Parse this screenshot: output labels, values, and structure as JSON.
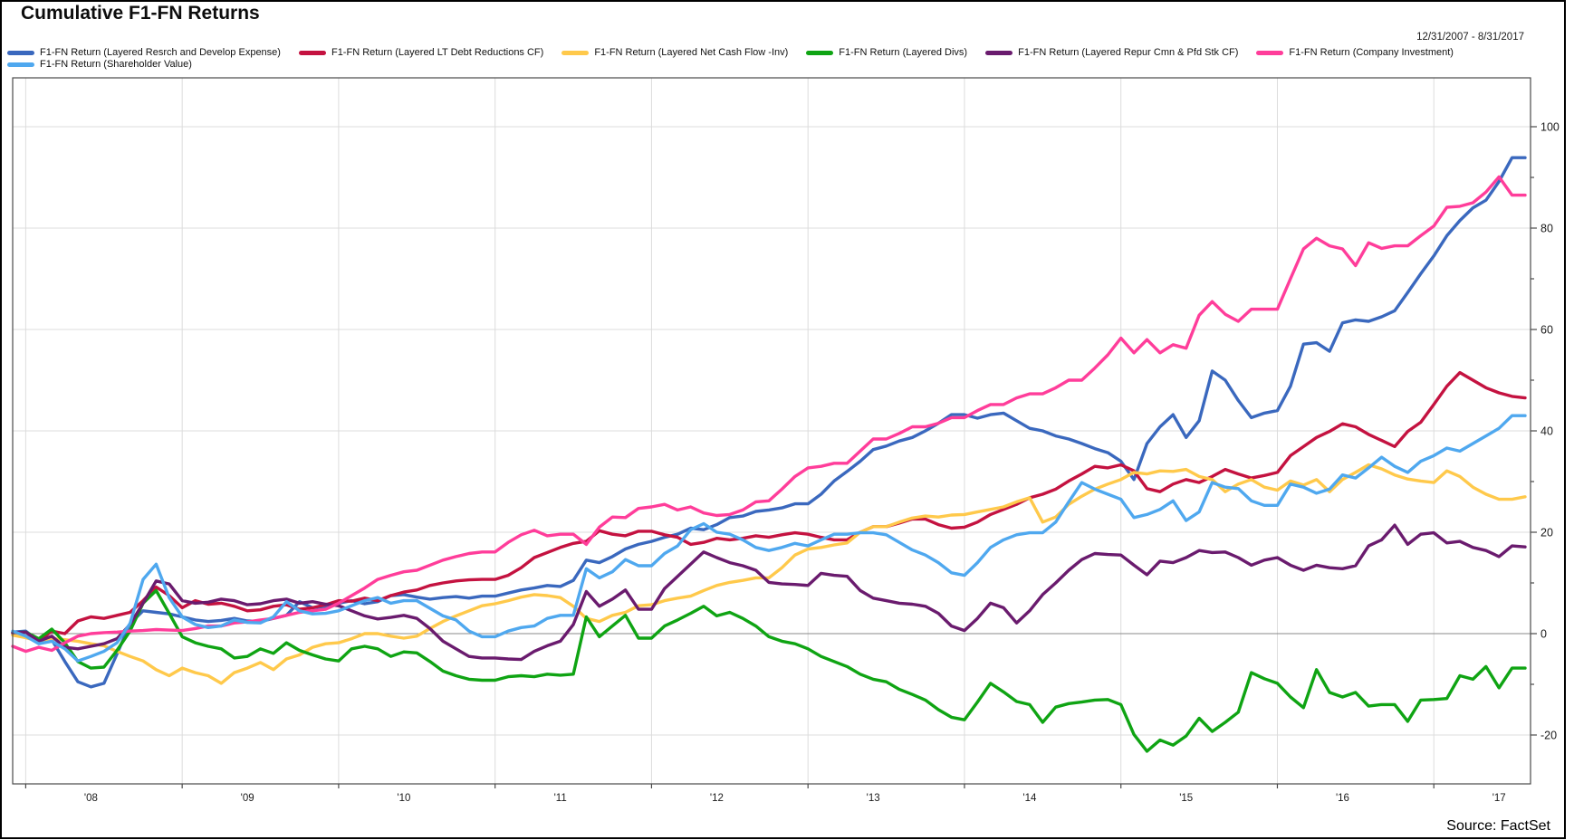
{
  "chart_data": {
    "type": "line",
    "title": "Cumulative F1-FN Returns",
    "period_label": "12/31/2007 - 8/31/2017",
    "source_label": "Source: FactSet",
    "legend_position": "top-left, two rows",
    "grid": {
      "horizontal_step": 20,
      "vertical": "year-start",
      "zero_line": true
    },
    "x_axis": {
      "start_month": "2007-12",
      "end_month": "2017-08",
      "points": 117,
      "step_months": 1,
      "labels": [
        "'08",
        "'09",
        "'10",
        "'11",
        "'12",
        "'13",
        "'14",
        "'15",
        "'16",
        "'17"
      ]
    },
    "y_axis": {
      "min": -29.6,
      "max": 109.6,
      "major_tick_step": 20,
      "minor_tick_step": 10,
      "tick_values": [
        -20,
        0,
        20,
        40,
        60,
        80,
        100
      ]
    },
    "series": [
      {
        "name": "F1-FN Return (Layered Resrch and Develop Expense)",
        "color": "#3A68BE",
        "values": [
          0.3,
          0.5,
          -1.5,
          -1.2,
          -5.5,
          -9.5,
          -10.5,
          -9.8,
          -4.0,
          2.0,
          4.5,
          4.2,
          3.9,
          3.3,
          2.7,
          2.4,
          2.6,
          3.0,
          2.5,
          2.4,
          3.0,
          3.6,
          6.3,
          5.1,
          5.4,
          6.0,
          6.5,
          5.9,
          6.3,
          7.5,
          7.7,
          7.2,
          6.8,
          7.1,
          7.3,
          7.0,
          7.4,
          7.4,
          8.0,
          8.6,
          9.0,
          9.5,
          9.3,
          10.5,
          14.5,
          14.0,
          15.2,
          16.7,
          17.6,
          18.2,
          19.0,
          19.6,
          20.8,
          20.5,
          21.5,
          22.9,
          23.2,
          24.1,
          24.4,
          24.8,
          25.6,
          25.6,
          27.5,
          30.1,
          32.0,
          34.0,
          36.3,
          37.0,
          38.0,
          38.7,
          40.0,
          41.5,
          43.2,
          43.2,
          42.5,
          43.2,
          43.5,
          42.0,
          40.5,
          40.0,
          39.0,
          38.4,
          37.5,
          36.5,
          35.7,
          34.0,
          30.4,
          37.5,
          40.8,
          43.2,
          38.7,
          42.0,
          51.8,
          50.0,
          46.0,
          42.6,
          43.5,
          44.0,
          48.8,
          57.1,
          57.4,
          55.7,
          61.3,
          61.9,
          61.6,
          62.5,
          63.7,
          67.3,
          71.0,
          74.5,
          78.5,
          81.5,
          84.0,
          85.5,
          89.2,
          93.9,
          93.9
        ]
      },
      {
        "name": "F1-FN Return (Layered LT Debt Reductions CF)",
        "color": "#C41240",
        "values": [
          0.0,
          -0.5,
          -1.5,
          0.5,
          0.0,
          2.5,
          3.3,
          3.0,
          3.6,
          4.2,
          6.5,
          9.2,
          7.5,
          5.1,
          6.5,
          5.8,
          6.0,
          5.4,
          4.5,
          4.7,
          5.4,
          5.7,
          4.8,
          5.1,
          5.7,
          6.5,
          6.4,
          7.0,
          6.5,
          7.5,
          8.2,
          8.6,
          9.5,
          10.0,
          10.4,
          10.6,
          10.7,
          10.7,
          11.5,
          13.0,
          15.0,
          16.0,
          17.0,
          17.8,
          18.2,
          20.3,
          19.6,
          19.3,
          20.2,
          20.2,
          19.5,
          19.0,
          17.6,
          18.0,
          18.8,
          18.5,
          18.8,
          19.3,
          19.0,
          19.5,
          19.9,
          19.6,
          19.0,
          18.5,
          18.5,
          20.0,
          21.1,
          21.1,
          21.8,
          22.6,
          22.6,
          21.5,
          20.8,
          21.0,
          22.0,
          23.5,
          24.5,
          25.5,
          26.8,
          27.5,
          28.5,
          30.1,
          31.5,
          33.0,
          32.7,
          33.3,
          32.1,
          28.6,
          28.0,
          29.5,
          30.4,
          29.8,
          31.0,
          32.4,
          31.5,
          30.7,
          31.2,
          31.8,
          35.1,
          36.9,
          38.7,
          39.9,
          41.4,
          40.8,
          39.3,
          38.1,
          36.9,
          39.9,
          41.7,
          45.2,
          48.8,
          51.5,
          50.0,
          48.5,
          47.5,
          46.8,
          46.5
        ]
      },
      {
        "name": "F1-FN Return (Layered Net Cash Flow -Inv)",
        "color": "#FFC94B",
        "values": [
          -0.3,
          -0.8,
          -1.5,
          -1.0,
          -1.2,
          -1.5,
          -2.0,
          -2.4,
          -3.5,
          -4.5,
          -5.4,
          -7.1,
          -8.3,
          -6.8,
          -7.7,
          -8.3,
          -9.8,
          -7.7,
          -6.8,
          -5.7,
          -7.1,
          -5.0,
          -4.2,
          -2.7,
          -2.0,
          -1.8,
          -1.0,
          0.0,
          0.0,
          -0.5,
          -0.9,
          -0.5,
          1.0,
          2.4,
          3.5,
          4.5,
          5.5,
          5.9,
          6.5,
          7.2,
          7.7,
          7.5,
          7.1,
          5.4,
          3.0,
          2.4,
          3.6,
          4.2,
          5.5,
          5.7,
          6.5,
          7.0,
          7.4,
          8.5,
          9.5,
          10.1,
          10.5,
          11.0,
          11.0,
          13.0,
          15.5,
          16.7,
          17.0,
          17.5,
          17.9,
          20.0,
          21.1,
          21.1,
          22.0,
          22.8,
          23.2,
          23.0,
          23.4,
          23.5,
          24.0,
          24.5,
          25.0,
          26.0,
          26.8,
          22.0,
          23.0,
          25.5,
          27.1,
          28.5,
          29.5,
          30.4,
          31.8,
          31.5,
          32.1,
          32.0,
          32.4,
          31.0,
          30.4,
          28.0,
          29.5,
          30.4,
          28.9,
          28.3,
          30.1,
          29.3,
          30.4,
          28.0,
          30.4,
          31.8,
          33.3,
          32.5,
          31.3,
          30.5,
          30.1,
          29.8,
          32.1,
          31.0,
          28.9,
          27.5,
          26.5,
          26.5,
          27.0
        ]
      },
      {
        "name": "F1-FN Return (Layered Divs)",
        "color": "#0FA413",
        "values": [
          0.2,
          0.3,
          -1.0,
          0.9,
          -1.8,
          -5.5,
          -6.8,
          -6.6,
          -3.3,
          0.5,
          6.0,
          8.5,
          4.0,
          -0.6,
          -1.8,
          -2.5,
          -3.0,
          -4.8,
          -4.5,
          -3.0,
          -3.9,
          -1.8,
          -3.3,
          -4.2,
          -5.0,
          -5.4,
          -3.0,
          -2.5,
          -3.0,
          -4.5,
          -3.6,
          -3.8,
          -5.5,
          -7.4,
          -8.3,
          -9.0,
          -9.2,
          -9.2,
          -8.5,
          -8.3,
          -8.5,
          -8.0,
          -8.2,
          -8.0,
          3.3,
          -0.6,
          1.5,
          3.6,
          -0.9,
          -0.9,
          1.5,
          2.7,
          4.0,
          5.4,
          3.5,
          4.2,
          3.0,
          1.5,
          -0.6,
          -1.5,
          -2.0,
          -3.0,
          -4.5,
          -5.5,
          -6.5,
          -8.0,
          -9.0,
          -9.5,
          -11.0,
          -12.0,
          -13.1,
          -15.0,
          -16.5,
          -17.0,
          -13.5,
          -9.8,
          -11.5,
          -13.4,
          -14.0,
          -17.5,
          -14.5,
          -13.8,
          -13.5,
          -13.1,
          -13.0,
          -14.0,
          -19.9,
          -23.2,
          -21.0,
          -22.0,
          -20.2,
          -16.7,
          -19.3,
          -17.5,
          -15.5,
          -7.7,
          -8.9,
          -9.8,
          -12.5,
          -14.6,
          -7.1,
          -11.6,
          -12.5,
          -11.6,
          -14.3,
          -14.0,
          -14.0,
          -17.3,
          -13.1,
          -13.0,
          -12.8,
          -8.3,
          -9.0,
          -6.5,
          -10.7,
          -6.8,
          -6.8
        ]
      },
      {
        "name": "F1-FN Return (Layered Repur Cmn & Pfd Stk CF)",
        "color": "#6A1B6E",
        "values": [
          0.2,
          0.3,
          -1.5,
          -0.5,
          -2.7,
          -3.0,
          -2.5,
          -2.0,
          -1.0,
          1.8,
          6.0,
          10.4,
          9.8,
          6.5,
          6.0,
          6.2,
          6.8,
          6.5,
          5.7,
          5.9,
          6.5,
          6.8,
          6.0,
          6.3,
          5.8,
          5.5,
          4.5,
          3.5,
          2.9,
          3.2,
          3.6,
          3.0,
          1.0,
          -1.5,
          -3.0,
          -4.5,
          -4.8,
          -4.8,
          -5.0,
          -5.1,
          -3.5,
          -2.4,
          -1.5,
          1.8,
          8.3,
          5.4,
          6.8,
          8.6,
          4.8,
          4.8,
          8.9,
          11.3,
          13.7,
          16.1,
          15.0,
          14.0,
          13.4,
          12.5,
          10.1,
          9.8,
          9.7,
          9.5,
          11.9,
          11.5,
          11.3,
          8.5,
          7.0,
          6.5,
          6.0,
          5.8,
          5.4,
          4.0,
          1.5,
          0.6,
          3.0,
          6.0,
          5.1,
          2.1,
          4.5,
          7.7,
          10.0,
          12.5,
          14.6,
          15.8,
          15.6,
          15.5,
          13.5,
          11.6,
          14.3,
          14.0,
          15.0,
          16.4,
          16.0,
          16.1,
          15.0,
          13.5,
          14.5,
          15.0,
          13.5,
          12.5,
          13.5,
          13.0,
          12.8,
          13.4,
          17.3,
          18.5,
          21.4,
          17.6,
          19.6,
          19.9,
          17.9,
          18.2,
          17.0,
          16.4,
          15.2,
          17.3,
          17.1
        ]
      },
      {
        "name": "F1-FN Return (Company Investment)",
        "color": "#FF3D9A",
        "values": [
          -2.5,
          -3.5,
          -2.7,
          -3.3,
          -1.8,
          -0.5,
          0.0,
          0.2,
          0.3,
          0.5,
          0.6,
          0.8,
          0.7,
          0.6,
          1.0,
          1.5,
          1.5,
          2.1,
          2.3,
          2.7,
          3.0,
          3.6,
          4.2,
          4.5,
          4.8,
          6.0,
          7.5,
          9.0,
          10.7,
          11.5,
          12.2,
          12.5,
          13.5,
          14.5,
          15.2,
          15.8,
          16.1,
          16.1,
          18.0,
          19.5,
          20.4,
          19.3,
          19.6,
          19.6,
          17.6,
          21.0,
          23.0,
          22.9,
          24.7,
          25.0,
          25.5,
          24.4,
          25.0,
          23.8,
          23.3,
          23.5,
          24.4,
          26.0,
          26.2,
          28.5,
          31.0,
          32.7,
          33.0,
          33.6,
          33.6,
          36.0,
          38.4,
          38.4,
          39.5,
          40.8,
          40.8,
          41.5,
          42.6,
          42.6,
          44.0,
          45.2,
          45.2,
          46.5,
          47.3,
          47.3,
          48.5,
          50.0,
          50.0,
          52.4,
          55.0,
          58.3,
          55.4,
          58.0,
          55.4,
          57.0,
          56.3,
          62.8,
          65.5,
          63.0,
          61.6,
          64.0,
          64.0,
          64.0,
          70.0,
          75.9,
          78.0,
          76.5,
          75.9,
          72.6,
          77.1,
          76.0,
          76.5,
          76.5,
          78.5,
          80.4,
          84.1,
          84.3,
          85.0,
          87.1,
          90.1,
          86.5,
          86.5
        ]
      },
      {
        "name": "F1-FN Return (Shareholder Value)",
        "color": "#4FA8EF",
        "values": [
          0.5,
          -0.5,
          -2.0,
          -1.5,
          -3.0,
          -5.4,
          -4.5,
          -3.5,
          -1.8,
          2.0,
          10.7,
          13.7,
          7.1,
          3.3,
          1.8,
          1.2,
          1.5,
          2.7,
          2.2,
          2.1,
          3.3,
          6.3,
          4.5,
          3.9,
          4.0,
          4.5,
          5.5,
          6.5,
          7.1,
          6.0,
          6.5,
          6.5,
          5.0,
          3.5,
          2.7,
          0.5,
          -0.6,
          -0.6,
          0.5,
          1.2,
          1.5,
          3.0,
          3.6,
          3.6,
          12.8,
          11.0,
          12.2,
          14.6,
          13.4,
          13.4,
          15.8,
          17.3,
          20.5,
          21.7,
          20.0,
          19.6,
          18.5,
          17.0,
          16.4,
          17.0,
          17.8,
          17.3,
          18.5,
          19.6,
          19.6,
          19.9,
          19.9,
          19.5,
          18.0,
          16.5,
          15.5,
          14.0,
          12.0,
          11.5,
          14.0,
          17.0,
          18.5,
          19.5,
          19.9,
          19.9,
          22.0,
          26.0,
          29.8,
          28.5,
          27.5,
          26.5,
          22.9,
          23.5,
          24.5,
          26.2,
          22.3,
          24.0,
          29.8,
          28.9,
          28.6,
          26.2,
          25.3,
          25.3,
          29.5,
          28.9,
          27.7,
          28.5,
          31.3,
          30.7,
          32.7,
          34.8,
          33.0,
          31.8,
          34.0,
          35.1,
          36.6,
          36.0,
          37.5,
          39.0,
          40.5,
          43.0,
          43.0
        ]
      }
    ],
    "colors": {
      "grid": "#DCDCDC",
      "zero_line": "#888888",
      "frame": "#4A4A4A",
      "axis_text": "#1A1A1A"
    }
  }
}
